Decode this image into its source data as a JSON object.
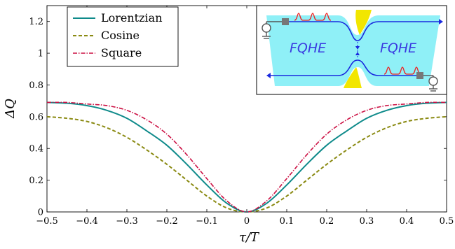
{
  "chart_data": {
    "type": "line",
    "xlabel": "τ/T",
    "ylabel": "ΔQ",
    "xlim": [
      -0.5,
      0.5
    ],
    "ylim": [
      0,
      1.3
    ],
    "x_ticks": [
      "−0.5",
      "−0.4",
      "−0.3",
      "−0.2",
      "−0.1",
      "0",
      "0.1",
      "0.2",
      "0.3",
      "0.4",
      "0.5"
    ],
    "y_ticks": [
      "0",
      "0.2",
      "0.4",
      "0.6",
      "0.8",
      "1",
      "1.2"
    ],
    "legend_position": "top-left",
    "grid": false,
    "series": [
      {
        "name": "Lorentzian",
        "color": "#0e8a8a",
        "style": "solid",
        "x": [
          -0.5,
          -0.45,
          -0.4,
          -0.35,
          -0.3,
          -0.25,
          -0.2,
          -0.15,
          -0.1,
          -0.05,
          0,
          0.05,
          0.1,
          0.15,
          0.2,
          0.25,
          0.3,
          0.35,
          0.4,
          0.45,
          0.5
        ],
        "y": [
          0.69,
          0.685,
          0.67,
          0.64,
          0.59,
          0.51,
          0.42,
          0.3,
          0.17,
          0.055,
          0.0,
          0.055,
          0.17,
          0.3,
          0.42,
          0.51,
          0.59,
          0.64,
          0.67,
          0.685,
          0.69
        ]
      },
      {
        "name": "Cosine",
        "color": "#8a8a12",
        "style": "dashed",
        "x": [
          -0.5,
          -0.45,
          -0.4,
          -0.35,
          -0.3,
          -0.25,
          -0.2,
          -0.15,
          -0.1,
          -0.05,
          0,
          0.05,
          0.1,
          0.15,
          0.2,
          0.25,
          0.3,
          0.35,
          0.4,
          0.45,
          0.5
        ],
        "y": [
          0.6,
          0.59,
          0.57,
          0.53,
          0.47,
          0.39,
          0.3,
          0.2,
          0.1,
          0.025,
          0.0,
          0.025,
          0.1,
          0.2,
          0.3,
          0.39,
          0.47,
          0.53,
          0.57,
          0.59,
          0.6
        ]
      },
      {
        "name": "Square",
        "color": "#cc1144",
        "style": "dashdot",
        "x": [
          -0.5,
          -0.45,
          -0.4,
          -0.35,
          -0.3,
          -0.25,
          -0.2,
          -0.15,
          -0.1,
          -0.05,
          0,
          0.05,
          0.1,
          0.15,
          0.2,
          0.25,
          0.3,
          0.35,
          0.4,
          0.45,
          0.5
        ],
        "y": [
          0.69,
          0.69,
          0.68,
          0.67,
          0.64,
          0.58,
          0.49,
          0.36,
          0.21,
          0.07,
          0.0,
          0.07,
          0.21,
          0.36,
          0.49,
          0.58,
          0.64,
          0.67,
          0.68,
          0.69,
          0.69
        ]
      }
    ],
    "inset": {
      "labels": [
        "FQHE",
        "FQHE"
      ],
      "colors": {
        "bar": "#8ff0f7",
        "gate": "#f2e600",
        "edge": "#1a2adf",
        "pulse": "#ee2222",
        "contact": "#777777"
      }
    }
  }
}
